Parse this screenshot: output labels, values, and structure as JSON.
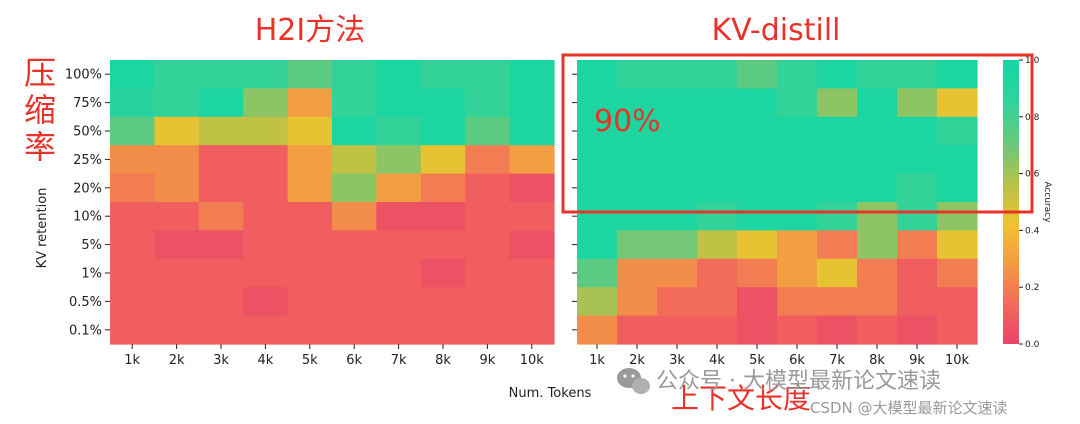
{
  "annotations": {
    "left_title": "H2I方法",
    "right_title": "KV-distill",
    "side_chars": [
      "压",
      "缩",
      "率"
    ],
    "overlay_pct": "90%",
    "x_caption": "上下文长度"
  },
  "watermark": {
    "line1": "公众号 · 大模型最新论文速读",
    "line2": "CSDN @大模型最新论文速读"
  },
  "colors": {
    "accent_red": "#e8332a",
    "scale": [
      "#e8436a",
      "#f36a5a",
      "#f29a45",
      "#f0c330",
      "#b7c24a",
      "#6cc77a",
      "#2fd39a",
      "#13d6a4"
    ]
  },
  "chart_data": [
    {
      "type": "heatmap",
      "title": "H2I方法",
      "xlabel": "Num. Tokens",
      "ylabel": "KV retention",
      "x_categories": [
        "1k",
        "2k",
        "3k",
        "4k",
        "5k",
        "6k",
        "7k",
        "8k",
        "9k",
        "10k"
      ],
      "y_categories": [
        "100%",
        "75%",
        "50%",
        "25%",
        "20%",
        "10%",
        "5%",
        "1%",
        "0.5%",
        "0.1%"
      ],
      "values": [
        [
          0.95,
          0.85,
          0.85,
          0.85,
          0.75,
          0.85,
          0.95,
          0.85,
          0.85,
          0.95
        ],
        [
          0.9,
          0.85,
          0.95,
          0.65,
          0.3,
          0.85,
          0.95,
          0.95,
          0.85,
          0.95
        ],
        [
          0.75,
          0.45,
          0.55,
          0.55,
          0.45,
          0.95,
          0.85,
          0.95,
          0.75,
          0.95
        ],
        [
          0.25,
          0.25,
          0.1,
          0.1,
          0.3,
          0.55,
          0.65,
          0.45,
          0.2,
          0.3
        ],
        [
          0.2,
          0.25,
          0.1,
          0.1,
          0.3,
          0.65,
          0.3,
          0.2,
          0.1,
          0.05
        ],
        [
          0.1,
          0.1,
          0.2,
          0.1,
          0.1,
          0.25,
          0.05,
          0.05,
          0.1,
          0.1
        ],
        [
          0.1,
          0.05,
          0.05,
          0.1,
          0.1,
          0.1,
          0.1,
          0.1,
          0.1,
          0.05
        ],
        [
          0.1,
          0.1,
          0.1,
          0.1,
          0.1,
          0.1,
          0.1,
          0.05,
          0.1,
          0.1
        ],
        [
          0.1,
          0.1,
          0.1,
          0.05,
          0.1,
          0.1,
          0.1,
          0.1,
          0.1,
          0.1
        ],
        [
          0.1,
          0.1,
          0.1,
          0.1,
          0.1,
          0.1,
          0.1,
          0.1,
          0.1,
          0.1
        ]
      ],
      "vlim": [
        0,
        1
      ]
    },
    {
      "type": "heatmap",
      "title": "KV-distill",
      "xlabel": "Num. Tokens",
      "x_categories": [
        "1k",
        "2k",
        "3k",
        "4k",
        "5k",
        "6k",
        "7k",
        "8k",
        "9k",
        "10k"
      ],
      "y_categories": [
        "100%",
        "75%",
        "50%",
        "25%",
        "20%",
        "10%",
        "5%",
        "1%",
        "0.5%",
        "0.1%"
      ],
      "values": [
        [
          0.95,
          0.85,
          0.85,
          0.85,
          0.75,
          0.85,
          0.95,
          0.85,
          0.85,
          0.95
        ],
        [
          0.95,
          0.95,
          0.95,
          0.95,
          0.95,
          0.85,
          0.65,
          0.95,
          0.65,
          0.45
        ],
        [
          0.95,
          0.95,
          0.95,
          0.95,
          0.95,
          0.95,
          0.95,
          0.95,
          0.95,
          0.85
        ],
        [
          0.95,
          0.95,
          0.95,
          0.95,
          0.95,
          0.95,
          0.95,
          0.95,
          0.95,
          0.95
        ],
        [
          0.95,
          0.95,
          0.95,
          0.95,
          0.95,
          0.95,
          0.95,
          0.95,
          0.85,
          0.95
        ],
        [
          0.95,
          0.95,
          0.95,
          0.85,
          0.95,
          0.95,
          0.85,
          0.65,
          0.85,
          0.65
        ],
        [
          0.95,
          0.7,
          0.7,
          0.55,
          0.45,
          0.3,
          0.2,
          0.65,
          0.2,
          0.45
        ],
        [
          0.75,
          0.25,
          0.25,
          0.15,
          0.2,
          0.3,
          0.45,
          0.2,
          0.1,
          0.2
        ],
        [
          0.6,
          0.25,
          0.15,
          0.15,
          0.05,
          0.2,
          0.2,
          0.2,
          0.1,
          0.1
        ],
        [
          0.25,
          0.1,
          0.1,
          0.1,
          0.05,
          0.1,
          0.05,
          0.1,
          0.05,
          0.1
        ]
      ],
      "vlim": [
        0,
        1
      ]
    }
  ],
  "colorbar": {
    "label": "Accuracy",
    "ticks": [
      "0.0",
      "0.2",
      "0.4",
      "0.6",
      "0.8",
      "1.0"
    ]
  }
}
